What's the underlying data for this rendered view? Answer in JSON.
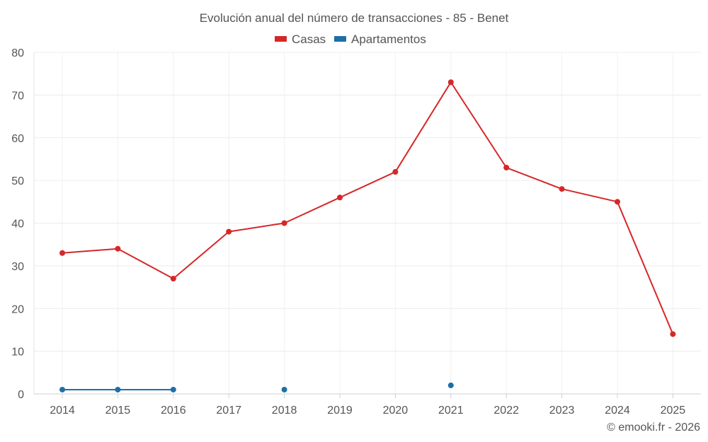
{
  "chart_data": {
    "type": "line",
    "title": "Evolución anual del número de transacciones - 85 - Benet",
    "xlabel": "",
    "ylabel": "",
    "categories": [
      "2014",
      "2015",
      "2016",
      "2017",
      "2018",
      "2019",
      "2020",
      "2021",
      "2022",
      "2023",
      "2024",
      "2025"
    ],
    "ylim": [
      0,
      80
    ],
    "yticks": [
      0,
      10,
      20,
      30,
      40,
      50,
      60,
      70,
      80
    ],
    "grid": true,
    "legend_position": "top",
    "series": [
      {
        "name": "Casas",
        "color": "#d62728",
        "values": [
          33,
          34,
          27,
          38,
          40,
          46,
          52,
          73,
          53,
          48,
          45,
          14
        ]
      },
      {
        "name": "Apartamentos",
        "color": "#1f6fa6",
        "values": [
          1,
          1,
          1,
          null,
          1,
          null,
          null,
          2,
          null,
          null,
          null,
          null
        ]
      }
    ]
  },
  "credit": "© emooki.fr - 2026"
}
